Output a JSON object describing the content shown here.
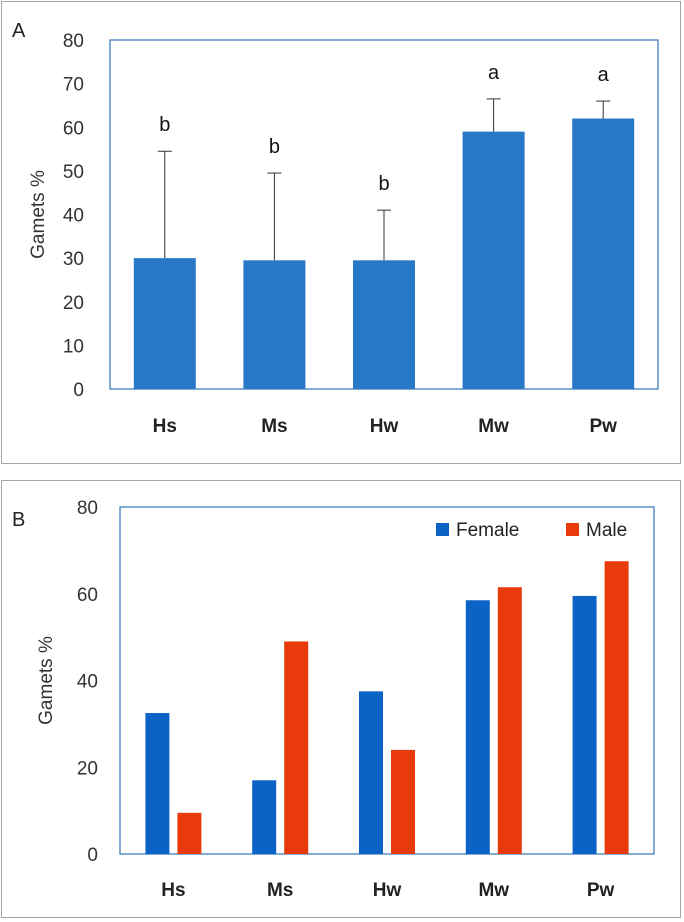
{
  "chart_data": [
    {
      "panel": "A",
      "type": "bar",
      "categories": [
        "Hs",
        "Ms",
        "Hw",
        "Mw",
        "Pw"
      ],
      "values": [
        30,
        29.5,
        29.5,
        59,
        62
      ],
      "error_upper": [
        54.5,
        49.5,
        41,
        66.5,
        66
      ],
      "significance": [
        "b",
        "b",
        "b",
        "a",
        "a"
      ],
      "ylabel": "Gamets %",
      "ylim": [
        0,
        80
      ],
      "yticks": [
        0,
        10,
        20,
        30,
        40,
        50,
        60,
        70,
        80
      ],
      "colors": {
        "bar": "#2878c8",
        "frame": "#2e75b6"
      }
    },
    {
      "panel": "B",
      "type": "bar",
      "categories": [
        "Hs",
        "Ms",
        "Hw",
        "Mw",
        "Pw"
      ],
      "series": [
        {
          "name": "Female",
          "values": [
            32.5,
            17,
            37.5,
            58.5,
            59.5
          ],
          "color": "#0b63c5"
        },
        {
          "name": "Male",
          "values": [
            9.5,
            49,
            24,
            61.5,
            67.5
          ],
          "color": "#e83a0a"
        }
      ],
      "ylabel": "Gamets %",
      "ylim": [
        0,
        80
      ],
      "yticks": [
        0,
        20,
        40,
        60,
        80
      ],
      "legend": "top-right",
      "colors": {
        "frame": "#2e75b6"
      }
    }
  ]
}
